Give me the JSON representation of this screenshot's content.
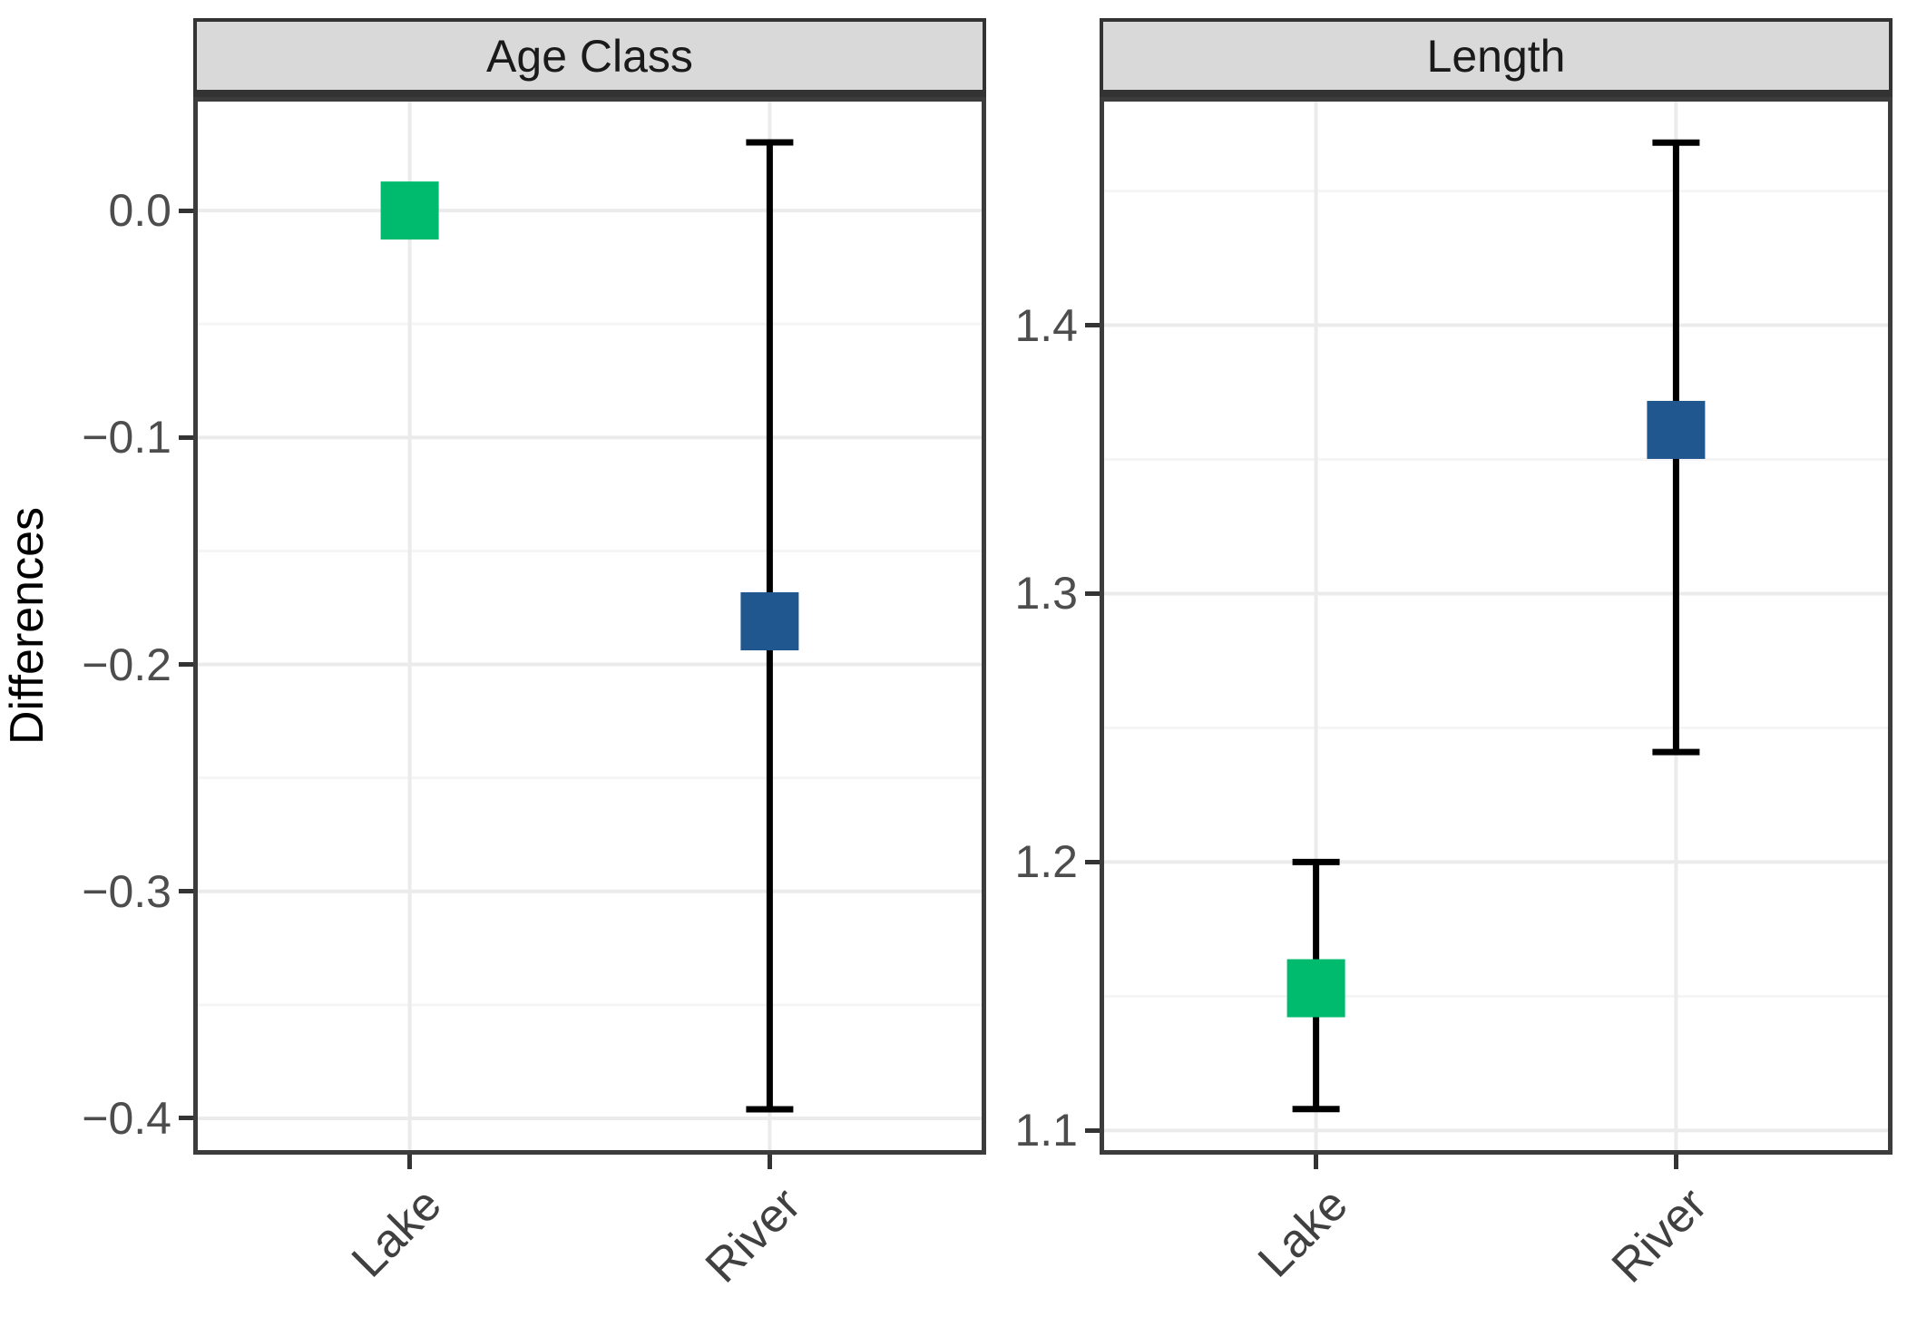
{
  "figure": {
    "ylabel": "Differences",
    "background": "#FFFFFF",
    "panel_border_color": "#3C3C3C",
    "strip_background": "#D9D9D9",
    "strip_border_color": "#333333",
    "gridline_major_color": "#EBEBEB",
    "gridline_minor_color": "#F5F5F5",
    "errorbar_color": "#000000",
    "tick_color": "#333333",
    "tick_text_color": "#4D4D4D"
  },
  "chart_data": {
    "type": "scatter",
    "subtype": "point-estimate-with-errorbars",
    "title": "",
    "xlabel": "",
    "ylabel": "Differences",
    "legend": "none",
    "grid": true,
    "categories": [
      "Lake",
      "River"
    ],
    "point_colors": {
      "Lake": "#00BB6E",
      "River": "#21578F"
    },
    "facets": [
      {
        "label": "Age Class",
        "ylim": [
          -0.416,
          0.05
        ],
        "yticks": [
          0.0,
          -0.1,
          -0.2,
          -0.3,
          -0.4
        ],
        "ytick_labels": [
          "0.0",
          "−0.1",
          "−0.2",
          "−0.3",
          "−0.4"
        ],
        "yminor": [
          -0.05,
          -0.15,
          -0.25,
          -0.35
        ],
        "series": [
          {
            "name": "Lake",
            "color": "#00BB6E",
            "estimate": 0.0,
            "ci_low": null,
            "ci_high": null
          },
          {
            "name": "River",
            "color": "#21578F",
            "estimate": -0.181,
            "ci_low": -0.396,
            "ci_high": 0.03
          }
        ]
      },
      {
        "label": "Length",
        "ylim": [
          1.091,
          1.485
        ],
        "yticks": [
          1.1,
          1.2,
          1.3,
          1.4
        ],
        "ytick_labels": [
          "1.1",
          "1.2",
          "1.3",
          "1.4"
        ],
        "yminor": [
          1.15,
          1.25,
          1.35,
          1.45
        ],
        "series": [
          {
            "name": "Lake",
            "color": "#00BB6E",
            "estimate": 1.153,
            "ci_low": 1.108,
            "ci_high": 1.2
          },
          {
            "name": "River",
            "color": "#21578F",
            "estimate": 1.361,
            "ci_low": 1.241,
            "ci_high": 1.468
          }
        ]
      }
    ]
  }
}
